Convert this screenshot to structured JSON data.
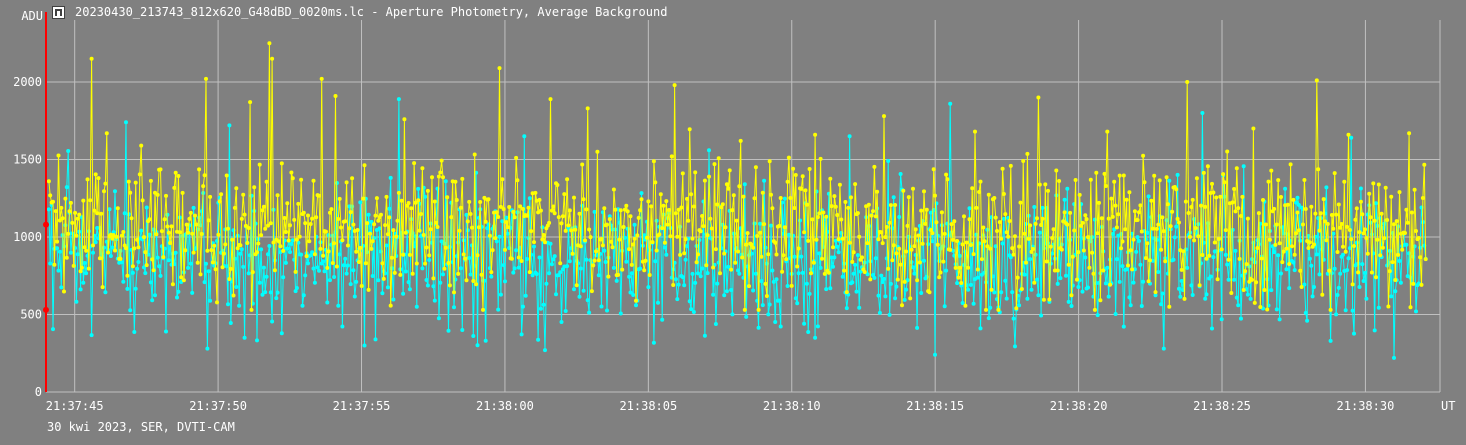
{
  "window": {
    "title": "20230430_213743_812x620_G48dBD_0020ms.lc - Aperture Photometry, Average Background",
    "footer": "30 kwi 2023, SER, DVTI-CAM"
  },
  "icons": {
    "app": "light-curve-app-icon"
  },
  "colors": {
    "background": "#808080",
    "grid": "#c0c0c0",
    "series_yellow": "#ffff00",
    "series_cyan": "#00ffff",
    "marker": "#ff0000"
  },
  "chart_data": {
    "type": "line",
    "y_unit_label": "ADU",
    "x_unit_label": "UT",
    "ylim": [
      0,
      2400
    ],
    "y_ticks": [
      0,
      500,
      1000,
      1500,
      2000
    ],
    "x_ticks": [
      "21:37:45",
      "21:37:50",
      "21:37:55",
      "21:38:00",
      "21:38:05",
      "21:38:10",
      "21:38:15",
      "21:38:20",
      "21:38:25",
      "21:38:30"
    ],
    "x_range_s": [
      0,
      48.6
    ],
    "x_range_note": "seconds after 21:37:44.0 UT",
    "grid": true,
    "legend": "none",
    "cursor_markers_adu": [
      1080,
      530
    ],
    "series": [
      {
        "color": "yellow",
        "mean": 1050,
        "sd": 220,
        "min": 470,
        "max": 2250,
        "peaks": [
          {
            "t": 1.6,
            "adu": 2150
          },
          {
            "t": 2.1,
            "adu": 1670
          },
          {
            "t": 5.6,
            "adu": 2020
          },
          {
            "t": 7.1,
            "adu": 1870
          },
          {
            "t": 7.8,
            "adu": 2250
          },
          {
            "t": 7.9,
            "adu": 2150
          },
          {
            "t": 9.6,
            "adu": 2020
          },
          {
            "t": 10.1,
            "adu": 1910
          },
          {
            "t": 12.5,
            "adu": 1760
          },
          {
            "t": 15.8,
            "adu": 2090
          },
          {
            "t": 17.6,
            "adu": 1890
          },
          {
            "t": 18.9,
            "adu": 1830
          },
          {
            "t": 21.9,
            "adu": 1980
          },
          {
            "t": 24.2,
            "adu": 1620
          },
          {
            "t": 26.8,
            "adu": 1660
          },
          {
            "t": 29.2,
            "adu": 1780
          },
          {
            "t": 32.4,
            "adu": 1680
          },
          {
            "t": 34.6,
            "adu": 1900
          },
          {
            "t": 37.0,
            "adu": 1680
          },
          {
            "t": 39.8,
            "adu": 2000
          },
          {
            "t": 42.1,
            "adu": 1700
          },
          {
            "t": 44.3,
            "adu": 2010
          },
          {
            "t": 45.4,
            "adu": 1660
          },
          {
            "t": 47.5,
            "adu": 1670
          }
        ]
      },
      {
        "color": "cyan",
        "mean": 850,
        "sd": 230,
        "min": 220,
        "max": 1890,
        "peaks": [
          {
            "t": 2.8,
            "adu": 1740
          },
          {
            "t": 6.4,
            "adu": 1720
          },
          {
            "t": 12.3,
            "adu": 1890
          },
          {
            "t": 16.7,
            "adu": 1650
          },
          {
            "t": 23.1,
            "adu": 1560
          },
          {
            "t": 28.0,
            "adu": 1650
          },
          {
            "t": 31.0,
            "adu": 1830
          },
          {
            "t": 31.5,
            "adu": 1860
          },
          {
            "t": 40.3,
            "adu": 1800
          },
          {
            "t": 45.5,
            "adu": 1640
          }
        ],
        "dips": [
          {
            "t": 6.9,
            "adu": 350
          },
          {
            "t": 11.1,
            "adu": 300
          },
          {
            "t": 17.4,
            "adu": 270
          },
          {
            "t": 26.8,
            "adu": 350
          },
          {
            "t": 31.0,
            "adu": 240
          },
          {
            "t": 44.8,
            "adu": 330
          },
          {
            "t": 47.0,
            "adu": 220
          }
        ]
      }
    ]
  }
}
